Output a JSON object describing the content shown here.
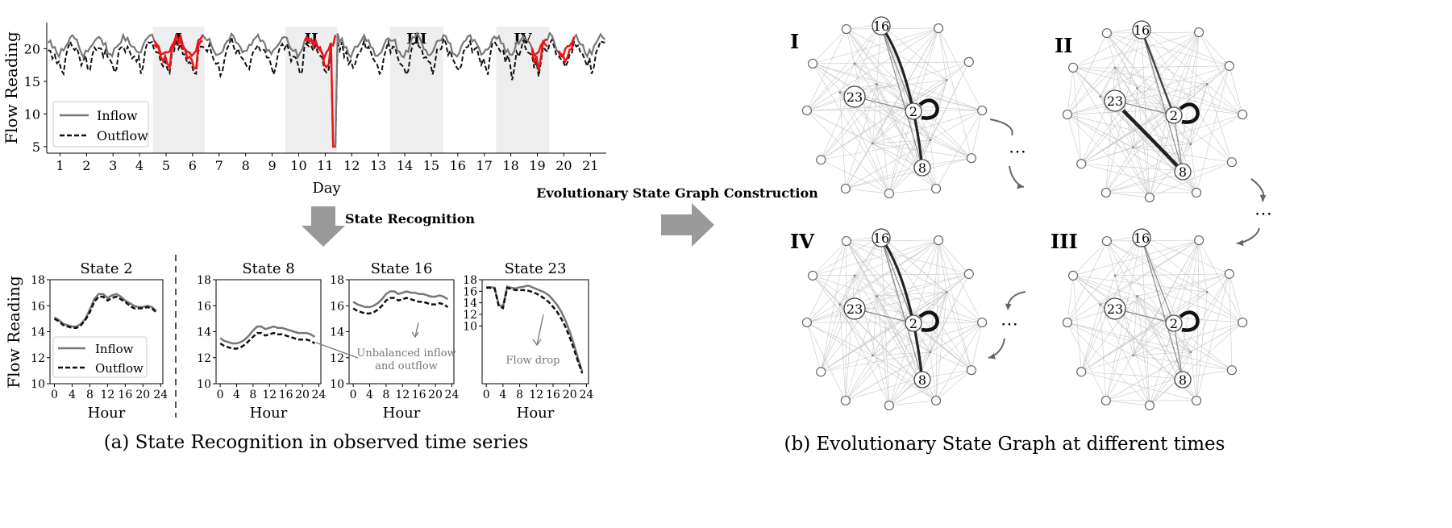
{
  "panel_a": {
    "caption": "(a) State Recognition in observed time series",
    "state_recognition_label": "State Recognition",
    "dashed_divider": true
  },
  "panel_b": {
    "caption": "(b) Evolutionary State Graph at different times"
  },
  "arrow_label": "Evolutionary State Graph Construction",
  "colors": {
    "inflow": "#777777",
    "outflow": "#111111",
    "anomaly": "#e8161b",
    "shade": "#eeeeee",
    "arrow": "#999999"
  },
  "chart_data": [
    {
      "id": "timeline",
      "type": "line",
      "xlabel": "Day",
      "ylabel": "Flow Reading",
      "xlim": [
        0.5,
        21.6
      ],
      "ylim": [
        4,
        24
      ],
      "xticks": [
        1,
        2,
        3,
        4,
        5,
        6,
        7,
        8,
        9,
        10,
        11,
        12,
        13,
        14,
        15,
        16,
        17,
        18,
        19,
        20,
        21
      ],
      "yticks": [
        5,
        10,
        15,
        20
      ],
      "legend": {
        "placement": "bottom-left",
        "entries": [
          "Inflow",
          "Outflow"
        ]
      },
      "regions": [
        {
          "label": "I",
          "x0": 4.5,
          "x1": 6.45
        },
        {
          "label": "II",
          "x0": 9.5,
          "x1": 11.45
        },
        {
          "label": "III",
          "x0": 13.45,
          "x1": 15.45
        },
        {
          "label": "IV",
          "x0": 17.45,
          "x1": 19.45
        }
      ],
      "anomalies": [
        {
          "x0": 4.5,
          "x1": 6.45
        },
        {
          "x0": 10.2,
          "x1": 11.45
        },
        {
          "x0": 18.8,
          "x1": 19.45
        },
        {
          "x0": 19.75,
          "x1": 20.45
        }
      ],
      "series": [
        {
          "name": "Inflow",
          "style": "solid"
        },
        {
          "name": "Outflow",
          "style": "dashed"
        }
      ]
    },
    {
      "id": "state2",
      "type": "line",
      "title": "State 2",
      "xlabel": "Hour",
      "ylabel": "Flow Reading",
      "xlim": [
        -1,
        24.5
      ],
      "ylim": [
        10,
        18
      ],
      "xticks": [
        0,
        4,
        8,
        12,
        16,
        20,
        24
      ],
      "yticks": [
        10,
        12,
        14,
        16,
        18
      ],
      "legend": {
        "placement": "bottom-left",
        "entries": [
          "Inflow",
          "Outflow"
        ]
      },
      "x": [
        0,
        1,
        2,
        3,
        4,
        5,
        6,
        7,
        8,
        9,
        10,
        11,
        12,
        13,
        14,
        15,
        16,
        17,
        18,
        19,
        20,
        21,
        22,
        23
      ],
      "series": [
        {
          "name": "Inflow",
          "values": [
            15.1,
            14.9,
            14.6,
            14.5,
            14.4,
            14.4,
            14.6,
            15.0,
            15.7,
            16.5,
            16.9,
            16.9,
            16.6,
            16.8,
            16.9,
            16.7,
            16.4,
            16.2,
            16.0,
            15.9,
            15.9,
            16.0,
            15.9,
            15.6
          ]
        },
        {
          "name": "Outflow",
          "values": [
            15.0,
            14.8,
            14.5,
            14.4,
            14.3,
            14.3,
            14.5,
            14.9,
            15.5,
            16.3,
            16.7,
            16.7,
            16.4,
            16.6,
            16.7,
            16.5,
            16.3,
            16.0,
            15.8,
            15.8,
            15.8,
            15.9,
            15.8,
            15.5
          ]
        }
      ]
    },
    {
      "id": "state8",
      "type": "line",
      "title": "State 8",
      "xlabel": "Hour",
      "xlim": [
        -1,
        24.5
      ],
      "ylim": [
        10,
        18
      ],
      "xticks": [
        0,
        4,
        8,
        12,
        16,
        20,
        24
      ],
      "yticks": [
        10,
        12,
        14,
        16,
        18
      ],
      "x": [
        0,
        1,
        2,
        3,
        4,
        5,
        6,
        7,
        8,
        9,
        10,
        11,
        12,
        13,
        14,
        15,
        16,
        17,
        18,
        19,
        20,
        21,
        22,
        23
      ],
      "series": [
        {
          "name": "Inflow",
          "values": [
            13.5,
            13.3,
            13.2,
            13.1,
            13.1,
            13.2,
            13.4,
            13.7,
            14.1,
            14.4,
            14.4,
            14.2,
            14.3,
            14.4,
            14.3,
            14.3,
            14.2,
            14.1,
            14.0,
            13.9,
            13.9,
            13.9,
            13.8,
            13.6
          ]
        },
        {
          "name": "Outflow",
          "values": [
            13.1,
            12.9,
            12.8,
            12.7,
            12.7,
            12.8,
            13.0,
            13.3,
            13.6,
            13.9,
            13.9,
            13.7,
            13.8,
            13.9,
            13.8,
            13.8,
            13.7,
            13.6,
            13.5,
            13.4,
            13.4,
            13.4,
            13.3,
            13.1
          ]
        }
      ],
      "annotation": "Unbalanced inflow\nand outflow"
    },
    {
      "id": "state16",
      "type": "line",
      "title": "State 16",
      "xlabel": "Hour",
      "xlim": [
        -1,
        24.5
      ],
      "ylim": [
        10,
        18
      ],
      "xticks": [
        0,
        4,
        8,
        12,
        16,
        20,
        24
      ],
      "yticks": [
        10,
        12,
        14,
        16,
        18
      ],
      "x": [
        0,
        1,
        2,
        3,
        4,
        5,
        6,
        7,
        8,
        9,
        10,
        11,
        12,
        13,
        14,
        15,
        16,
        17,
        18,
        19,
        20,
        21,
        22,
        23
      ],
      "series": [
        {
          "name": "Inflow",
          "values": [
            16.3,
            16.1,
            16.0,
            15.9,
            15.9,
            16.0,
            16.2,
            16.5,
            16.9,
            17.1,
            17.1,
            16.9,
            17.0,
            17.1,
            17.0,
            17.0,
            16.9,
            16.9,
            16.8,
            16.7,
            16.7,
            16.8,
            16.7,
            16.5
          ]
        },
        {
          "name": "Outflow",
          "values": [
            15.8,
            15.6,
            15.5,
            15.4,
            15.4,
            15.5,
            15.7,
            16.0,
            16.4,
            16.6,
            16.6,
            16.4,
            16.5,
            16.6,
            16.5,
            16.4,
            16.3,
            16.3,
            16.2,
            16.1,
            16.1,
            16.2,
            16.1,
            15.9
          ]
        }
      ]
    },
    {
      "id": "state23",
      "type": "line",
      "title": "State 23",
      "xlabel": "Hour",
      "xlim": [
        -1,
        24.5
      ],
      "ylim": [
        0,
        18
      ],
      "xticks": [
        0,
        4,
        8,
        12,
        16,
        20,
        24
      ],
      "yticks": [
        10,
        12,
        14,
        16,
        18
      ],
      "x": [
        0,
        1,
        2,
        3,
        4,
        5,
        6,
        7,
        8,
        9,
        10,
        11,
        12,
        13,
        14,
        15,
        16,
        17,
        18,
        19,
        20,
        21,
        22,
        23
      ],
      "series": [
        {
          "name": "Inflow",
          "values": [
            16.7,
            16.7,
            16.6,
            13.6,
            13.4,
            16.8,
            16.6,
            16.5,
            16.7,
            16.8,
            17.0,
            16.7,
            16.4,
            16.1,
            15.8,
            15.3,
            14.5,
            13.6,
            12.4,
            10.9,
            9.0,
            6.8,
            4.3,
            2.1
          ]
        },
        {
          "name": "Outflow",
          "values": [
            16.6,
            16.6,
            16.5,
            13.4,
            13.1,
            16.6,
            16.4,
            16.2,
            16.2,
            16.2,
            16.1,
            15.9,
            15.6,
            15.2,
            14.7,
            14.1,
            13.3,
            12.4,
            11.2,
            9.8,
            8.0,
            6.0,
            3.8,
            1.8
          ]
        }
      ],
      "annotation": "Flow drop"
    }
  ],
  "graphs": [
    {
      "label": "I",
      "highlight": "strong edge 16-8, self-loop on 2"
    },
    {
      "label": "II",
      "highlight": "strong edge 8-23, self-loop on 2"
    },
    {
      "label": "III",
      "highlight": "self-loop on 2"
    },
    {
      "label": "IV",
      "highlight": "strong edge 16-8, self-loop on 2"
    }
  ],
  "graph_nodes": {
    "labeled": [
      "16",
      "23",
      "2",
      "8"
    ],
    "ellipsis": "⋯"
  }
}
